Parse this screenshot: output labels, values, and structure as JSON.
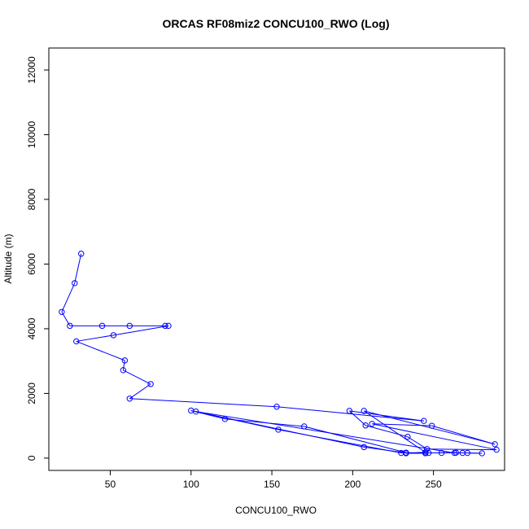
{
  "chart_data": {
    "type": "line",
    "title": "ORCAS RF08miz2 CONCU100_RWO (Log)",
    "xlabel": "CONCU100_RWO",
    "ylabel": "Altitude (m)",
    "xlim": [
      12,
      294
    ],
    "ylim": [
      -380,
      12680
    ],
    "xticks": [
      50,
      100,
      150,
      200,
      250
    ],
    "yticks": [
      0,
      2000,
      4000,
      6000,
      8000,
      10000,
      12000
    ],
    "grid": false,
    "legend": "none",
    "colors": {
      "series": "#0000ff",
      "axes": "#000000",
      "background": "#ffffff"
    },
    "series": [
      {
        "points": [
          [
            32,
            6320
          ],
          [
            28,
            5410
          ],
          [
            20,
            4520
          ],
          [
            25,
            4090
          ],
          [
            45,
            4090
          ],
          [
            62,
            4090
          ],
          [
            84,
            4090
          ],
          [
            86,
            4090
          ],
          [
            52,
            3800
          ],
          [
            29,
            3610
          ],
          [
            59,
            3020
          ],
          [
            58,
            2720
          ],
          [
            75,
            2290
          ],
          [
            62,
            1840
          ],
          [
            153,
            1590
          ],
          [
            244,
            1150
          ],
          [
            198,
            1460
          ],
          [
            208,
            1010
          ],
          [
            234,
            660
          ],
          [
            246,
            280
          ],
          [
            289,
            260
          ],
          [
            212,
            1060
          ],
          [
            249,
            1000
          ],
          [
            288,
            430
          ],
          [
            207,
            1460
          ],
          [
            245,
            180
          ],
          [
            233,
            160
          ],
          [
            207,
            340
          ],
          [
            100,
            1470
          ],
          [
            121,
            1210
          ],
          [
            170,
            980
          ],
          [
            233,
            170
          ],
          [
            245,
            150
          ],
          [
            233,
            150
          ],
          [
            247,
            160
          ],
          [
            264,
            170
          ],
          [
            255,
            160
          ],
          [
            230,
            160
          ],
          [
            154,
            880
          ],
          [
            103,
            1440
          ],
          [
            263,
            160
          ],
          [
            271,
            160
          ],
          [
            280,
            150
          ],
          [
            268,
            160
          ]
        ]
      }
    ]
  }
}
